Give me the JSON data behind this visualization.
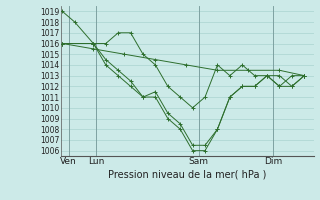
{
  "xlabel": "Pression niveau de la mer( hPa )",
  "ylim": [
    1005.5,
    1019.5
  ],
  "yticks": [
    1006,
    1007,
    1008,
    1009,
    1010,
    1011,
    1012,
    1013,
    1014,
    1015,
    1016,
    1017,
    1018,
    1019
  ],
  "bg_color": "#cceae8",
  "grid_color": "#aad4d0",
  "line_color": "#2d6e2d",
  "series1_x": [
    0,
    0.4,
    1.0,
    1.4,
    1.8,
    2.2,
    2.6,
    3.0,
    3.4,
    3.8,
    4.2,
    4.6,
    5.0,
    5.4,
    5.8,
    6.2,
    6.6,
    7.0,
    7.4,
    7.8
  ],
  "series1_y": [
    1019,
    1018,
    1016,
    1016,
    1017,
    1017,
    1015,
    1014,
    1012,
    1011,
    1010,
    1011,
    1014,
    1013,
    1014,
    1013,
    1013,
    1013,
    1012,
    1013
  ],
  "series2_x": [
    0.0,
    1.0,
    1.4,
    1.8,
    2.2,
    2.6,
    3.0,
    3.4,
    3.8,
    4.2,
    4.6,
    5.0,
    5.4,
    5.8,
    6.2,
    6.6,
    7.0,
    7.4,
    7.8
  ],
  "series2_y": [
    1016,
    1016,
    1014,
    1013,
    1012,
    1011,
    1011,
    1009,
    1008,
    1006,
    1006,
    1008,
    1011,
    1012,
    1012,
    1013,
    1012,
    1013,
    1013
  ],
  "series3_x": [
    0.0,
    1.0,
    1.4,
    1.8,
    2.2,
    2.6,
    3.0,
    3.4,
    3.8,
    4.2,
    4.6,
    5.0,
    5.4,
    5.8,
    6.2,
    6.6,
    7.0,
    7.4,
    7.8
  ],
  "series3_y": [
    1016,
    1016,
    1014.5,
    1013.5,
    1012.5,
    1011,
    1011.5,
    1009.5,
    1008.5,
    1006.5,
    1006.5,
    1008,
    1011,
    1012,
    1012,
    1013,
    1012,
    1012,
    1013
  ],
  "series4_x": [
    0.0,
    1.0,
    2.0,
    3.0,
    4.0,
    5.0,
    6.0,
    7.0,
    7.8
  ],
  "series4_y": [
    1016,
    1015.5,
    1015,
    1014.5,
    1014,
    1013.5,
    1013.5,
    1013.5,
    1013
  ],
  "xtick_positions": [
    0.2,
    1.1,
    4.4,
    6.8
  ],
  "xtick_labels": [
    "Ven",
    "Lun",
    "Sam",
    "Dim"
  ],
  "vline_positions": [
    0.2,
    1.1,
    4.4,
    6.8
  ],
  "xlim": [
    -0.05,
    8.1
  ]
}
